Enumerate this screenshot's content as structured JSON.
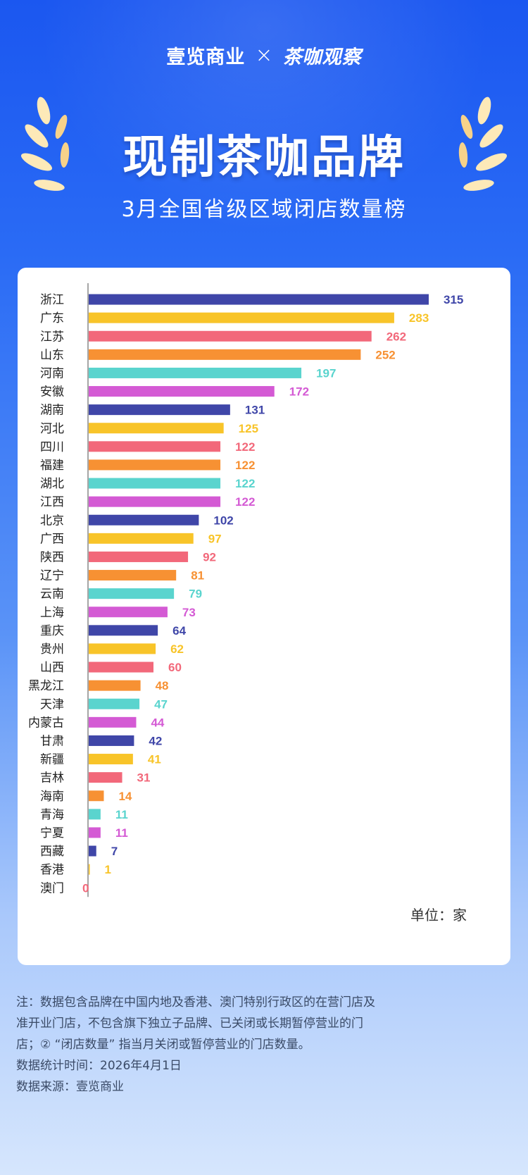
{
  "brand": {
    "left": "壹览商业",
    "cross": "×",
    "right": "茶咖观察"
  },
  "header": {
    "title": "现制茶咖品牌",
    "subtitle": "3月全国省级区域闭店数量榜"
  },
  "colors": {
    "palette": [
      "#3f46a8",
      "#f8c429",
      "#f2687a",
      "#f79133",
      "#5ad4ce",
      "#d45ad4"
    ]
  },
  "chart_data": {
    "type": "bar",
    "orientation": "horizontal",
    "categories": [
      "浙江",
      "广东",
      "江苏",
      "山东",
      "河南",
      "安徽",
      "湖南",
      "河北",
      "四川",
      "福建",
      "湖北",
      "江西",
      "北京",
      "广西",
      "陕西",
      "辽宁",
      "云南",
      "上海",
      "重庆",
      "贵州",
      "山西",
      "黑龙江",
      "天津",
      "内蒙古",
      "甘肃",
      "新疆",
      "吉林",
      "海南",
      "青海",
      "宁夏",
      "西藏",
      "香港",
      "澳门"
    ],
    "values": [
      315,
      283,
      262,
      252,
      197,
      172,
      131,
      125,
      122,
      122,
      122,
      122,
      102,
      97,
      92,
      81,
      79,
      73,
      64,
      62,
      60,
      48,
      47,
      44,
      42,
      41,
      31,
      14,
      11,
      11,
      7,
      1,
      0
    ],
    "xlim": [
      0,
      315
    ],
    "grid": false,
    "legend": "none",
    "unit_label": "单位：家"
  },
  "notes": {
    "line1": "注：数据包含品牌在中国内地及香港、澳门特别行政区的在营门店及准开业门店，不包含旗下独立子品牌、已关闭或长期暂停营业的门店；② “闭店数量” 指当月关闭或暂停营业的门店数量。",
    "line2": "数据统计时间：2026年4月1日",
    "line3": "数据来源：壹览商业"
  }
}
